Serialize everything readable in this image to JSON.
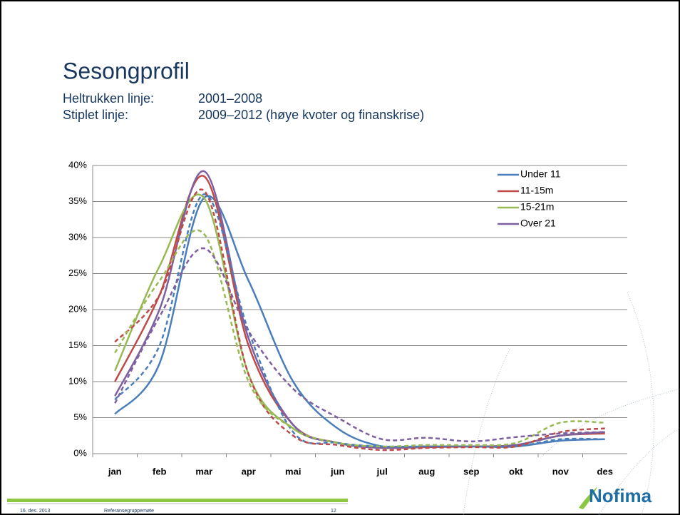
{
  "slide": {
    "title": "Sesongprofil",
    "lines": [
      [
        "Heltrukken linje:",
        "2001–2008"
      ],
      [
        "Stiplet linje:",
        "2009–2012 (høye kvoter og finanskrise)"
      ]
    ],
    "footer": {
      "date": "16. des. 2013",
      "meeting": "Referansegruppemøte",
      "page": "12"
    },
    "logo": "Nofima"
  },
  "chart_data": {
    "type": "line",
    "categories": [
      "jan",
      "feb",
      "mar",
      "apr",
      "mai",
      "jun",
      "jul",
      "aug",
      "sep",
      "okt",
      "nov",
      "des"
    ],
    "ylim": [
      0,
      40
    ],
    "yticks": [
      {
        "value": 0,
        "label": "0%"
      },
      {
        "value": 5,
        "label": "5%"
      },
      {
        "value": 10,
        "label": "10%"
      },
      {
        "value": 15,
        "label": "15%"
      },
      {
        "value": 20,
        "label": "20%"
      },
      {
        "value": 25,
        "label": "25%"
      },
      {
        "value": 30,
        "label": "30%"
      },
      {
        "value": 35,
        "label": "35%"
      },
      {
        "value": 40,
        "label": "40%"
      }
    ],
    "grid": true,
    "legend": "top-right",
    "series": [
      {
        "name": "Under 11",
        "color": "#4a7ebb",
        "values": [
          5.5,
          12.5,
          35.5,
          24,
          10,
          3.5,
          1,
          1,
          1,
          1,
          1.8,
          2
        ]
      },
      {
        "name": "11-15m",
        "color": "#be4b48",
        "values": [
          10,
          22,
          38.5,
          15,
          4,
          1.5,
          0.8,
          0.9,
          1,
          1.2,
          2.5,
          2.8
        ]
      },
      {
        "name": "15-21m",
        "color": "#98b954",
        "values": [
          11.5,
          26,
          35.5,
          11,
          3.5,
          1.5,
          0.8,
          1,
          1,
          1.2,
          2.5,
          3
        ]
      },
      {
        "name": "Over 21",
        "color": "#7d60a0",
        "values": [
          8,
          20,
          39.2,
          16,
          4,
          1.5,
          0.8,
          1,
          1,
          1.2,
          2.5,
          3
        ]
      },
      {
        "color": "#4a7ebb",
        "dashed": true,
        "values": [
          7.5,
          15,
          36,
          17,
          3,
          1.5,
          1,
          1,
          1,
          1,
          2,
          2
        ]
      },
      {
        "color": "#be4b48",
        "dashed": true,
        "values": [
          15.5,
          22,
          36.5,
          11,
          2.5,
          1.2,
          0.5,
          0.8,
          0.9,
          1,
          3,
          3.5
        ]
      },
      {
        "color": "#98b954",
        "dashed": true,
        "values": [
          14,
          24,
          30.5,
          10,
          3.5,
          1.5,
          1,
          1.2,
          1.2,
          1.5,
          4.3,
          4.3
        ]
      },
      {
        "color": "#7d60a0",
        "dashed": true,
        "values": [
          7,
          19,
          28.5,
          17,
          9,
          5,
          2,
          2.2,
          1.7,
          2.3,
          2.8,
          3
        ]
      }
    ]
  }
}
